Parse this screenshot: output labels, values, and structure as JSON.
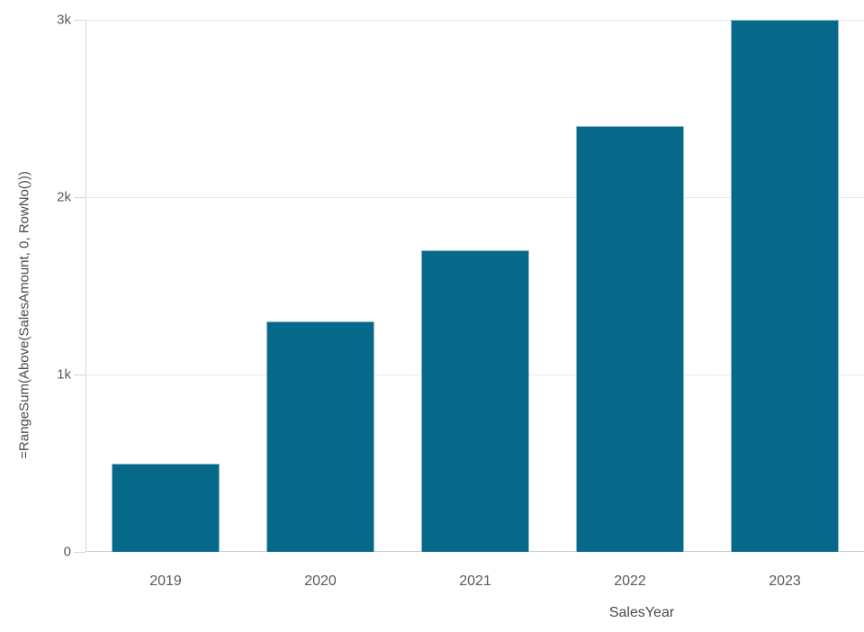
{
  "chart_data": {
    "type": "bar",
    "categories": [
      "2019",
      "2020",
      "2021",
      "2022",
      "2023"
    ],
    "values": [
      500,
      1300,
      1700,
      2400,
      3000
    ],
    "title": "",
    "xlabel": "SalesYear",
    "ylabel": "=RangeSum(Above(SalesAmount, 0, RowNo()))",
    "ylim": [
      0,
      3000
    ],
    "yticks": [
      {
        "value": 0,
        "label": "0"
      },
      {
        "value": 1000,
        "label": "1k"
      },
      {
        "value": 2000,
        "label": "2k"
      },
      {
        "value": 3000,
        "label": "3k"
      }
    ],
    "grid": true,
    "legend": "none",
    "colors": {
      "bar_fill": "#06698a",
      "bar_border": "#8fb8c9",
      "gridline": "#e8e8e8",
      "axis_line": "#d4d4d4",
      "baseline": "#cccccc",
      "tick_text": "#595959",
      "axis_title_text": "#4a4a4a"
    }
  }
}
